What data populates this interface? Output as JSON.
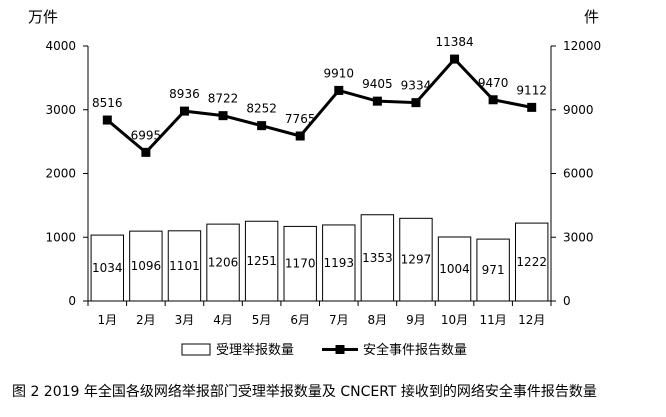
{
  "chart_data": {
    "type": "bar",
    "categories": [
      "1月",
      "2月",
      "3月",
      "4月",
      "5月",
      "6月",
      "7月",
      "8月",
      "9月",
      "10月",
      "11月",
      "12月"
    ],
    "series": [
      {
        "name": "受理举报数量",
        "type": "bar",
        "axis": "left",
        "values": [
          1034,
          1096,
          1101,
          1206,
          1251,
          1170,
          1193,
          1353,
          1297,
          1004,
          971,
          1222
        ]
      },
      {
        "name": "安全事件报告数量",
        "type": "line",
        "axis": "right",
        "values": [
          8516,
          6995,
          8936,
          8722,
          8252,
          7765,
          9910,
          9405,
          9334,
          11384,
          9470,
          9112
        ]
      }
    ],
    "y_left": {
      "unit": "万件",
      "ticks": [
        "0",
        "1000",
        "2000",
        "3000",
        "4000"
      ],
      "ylim": [
        0,
        4000
      ]
    },
    "y_right": {
      "unit": "件",
      "ticks": [
        "0",
        "3000",
        "6000",
        "9000",
        "12000"
      ],
      "ylim": [
        0,
        12000
      ]
    },
    "legend_position": "bottom",
    "grid": false,
    "colors": {
      "bar_fill": "#ffffff",
      "bar_stroke": "#000000",
      "line": "#000000"
    }
  },
  "caption": "图 2 2019 年全国各级网络举报部门受理举报数量及 CNCERT 接收到的网络安全事件报告数量"
}
